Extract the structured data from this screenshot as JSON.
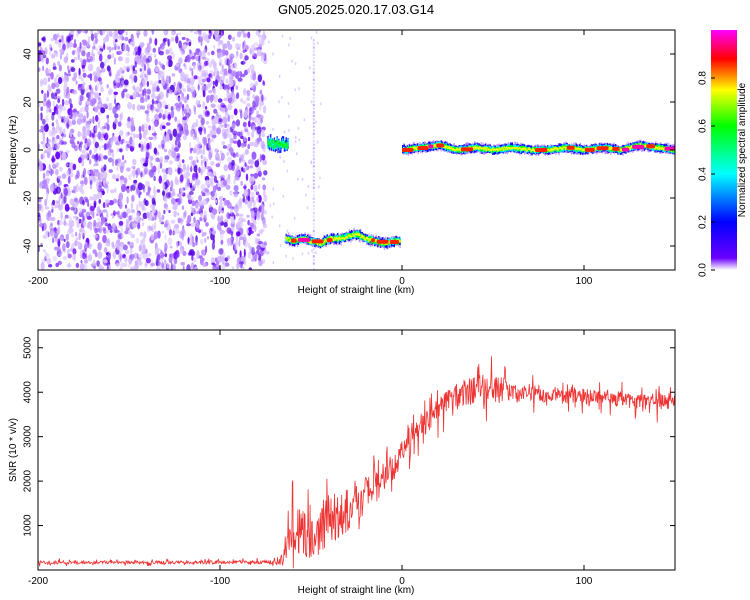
{
  "chart_data": [
    {
      "type": "heatmap",
      "title": "GN05.2025.020.17.03.G14",
      "xlabel": "Height of straight line (km)",
      "ylabel": "Frequency (Hz)",
      "xlim": [
        -200,
        150
      ],
      "ylim": [
        -50,
        50
      ],
      "xticks": [
        -200,
        -100,
        0,
        100
      ],
      "yticks": [
        -40,
        -20,
        0,
        20,
        40
      ],
      "colorbar": {
        "label": "Normalized spectral amplitude",
        "range": [
          0,
          1
        ],
        "ticks": [
          0,
          0.2,
          0.4,
          0.6,
          0.8
        ],
        "tick_labels": [
          "0.0",
          "0.2",
          "0.4",
          "0.6",
          "0.8"
        ],
        "colors": [
          "#ffffff",
          "#6a00ff",
          "#0000ff",
          "#00ffff",
          "#00ff00",
          "#ffff00",
          "#ff0000",
          "#ff00ff"
        ]
      },
      "features": [
        {
          "x_range": [
            -200,
            -75
          ],
          "freq_range": [
            -50,
            50
          ],
          "amplitude": "low",
          "pattern": "scattered noise"
        },
        {
          "x_range": [
            -74,
            -63
          ],
          "freq_center": 3,
          "amplitude": "medium"
        },
        {
          "x_range": [
            -64,
            -1
          ],
          "freq_center": -38,
          "amplitude": "high"
        },
        {
          "x_range": [
            0,
            150
          ],
          "freq_center": 0.5,
          "amplitude": "high"
        }
      ],
      "track_low": {
        "x": [
          -64,
          -60,
          -55,
          -50,
          -45,
          -40,
          -35,
          -30,
          -25,
          -20,
          -15,
          -10,
          -5,
          -1
        ],
        "freq": [
          -37,
          -38,
          -37,
          -38,
          -39,
          -37,
          -37,
          -36,
          -35,
          -37,
          -38,
          -39,
          -38,
          -38
        ]
      },
      "track_zero": {
        "x": [
          0,
          10,
          20,
          30,
          40,
          50,
          60,
          70,
          80,
          90,
          100,
          110,
          120,
          130,
          140,
          150
        ],
        "freq": [
          0,
          1,
          2,
          0,
          1,
          0,
          1,
          0,
          0,
          1,
          0,
          1,
          0,
          2,
          1,
          0
        ]
      }
    },
    {
      "type": "line",
      "title": "",
      "xlabel": "Height of straight line (km)",
      "ylabel": "SNR (10 * v/v)",
      "xlim": [
        -200,
        150
      ],
      "ylim": [
        0,
        5400
      ],
      "xticks": [
        -200,
        -100,
        0,
        100
      ],
      "yticks": [
        1000,
        2000,
        3000,
        4000,
        5000
      ],
      "series": [
        {
          "color": "#ee3333",
          "x": [
            -200,
            -190,
            -180,
            -170,
            -160,
            -150,
            -140,
            -130,
            -120,
            -110,
            -100,
            -90,
            -80,
            -70,
            -65,
            -60,
            -55,
            -50,
            -45,
            -40,
            -35,
            -30,
            -25,
            -20,
            -15,
            -10,
            -5,
            0,
            5,
            10,
            15,
            20,
            25,
            30,
            35,
            40,
            45,
            50,
            55,
            60,
            70,
            80,
            90,
            100,
            110,
            120,
            130,
            140,
            150
          ],
          "y": [
            170,
            170,
            175,
            170,
            180,
            175,
            170,
            170,
            175,
            170,
            175,
            180,
            170,
            180,
            250,
            800,
            900,
            700,
            900,
            1100,
            1200,
            1350,
            1500,
            1700,
            1900,
            2100,
            2300,
            2600,
            2900,
            3150,
            3400,
            3600,
            3800,
            3950,
            4000,
            4050,
            4100,
            4100,
            4050,
            4000,
            4000,
            3950,
            3900,
            3900,
            3850,
            3850,
            3800,
            3800,
            3800
          ],
          "noise": [
            60,
            60,
            60,
            60,
            60,
            60,
            60,
            60,
            60,
            60,
            60,
            60,
            60,
            70,
            300,
            900,
            900,
            800,
            900,
            900,
            900,
            800,
            700,
            700,
            600,
            600,
            500,
            500,
            500,
            450,
            450,
            450,
            450,
            450,
            500,
            500,
            550,
            550,
            500,
            400,
            350,
            300,
            300,
            300,
            300,
            300,
            300,
            350,
            300
          ]
        }
      ]
    }
  ]
}
